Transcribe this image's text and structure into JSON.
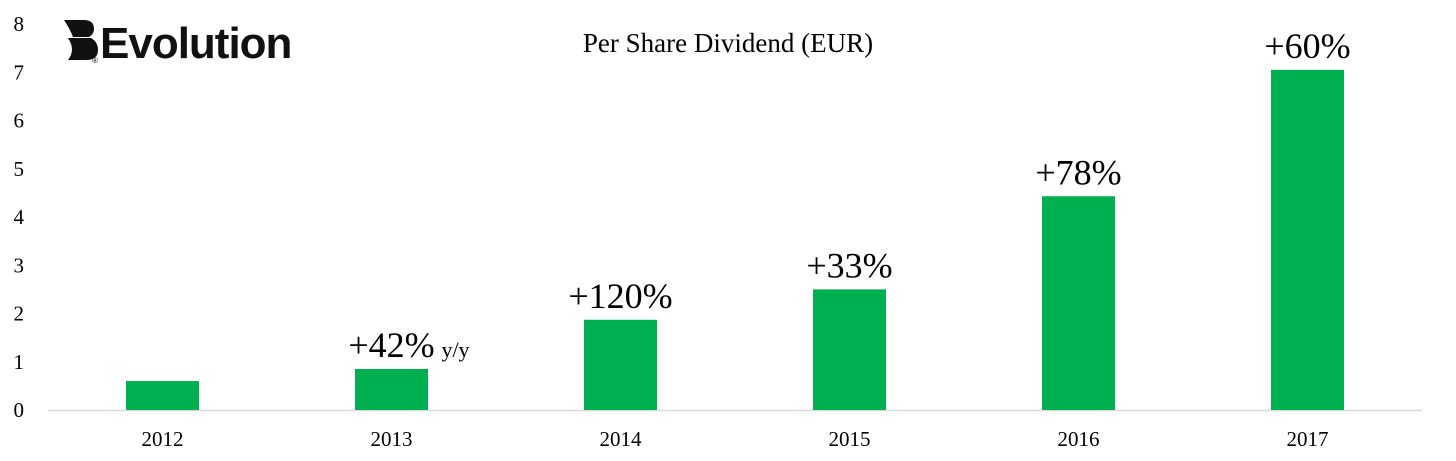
{
  "logo": {
    "text": "Evolution",
    "registered": "®"
  },
  "chart_data": {
    "type": "bar",
    "title": "Per Share Dividend (EUR)",
    "xlabel": "",
    "ylabel": "",
    "categories": [
      "2012",
      "2013",
      "2014",
      "2015",
      "2016",
      "2017"
    ],
    "values": [
      0.6,
      0.85,
      1.87,
      2.5,
      4.43,
      7.05
    ],
    "ylim": [
      0,
      8
    ],
    "yticks": [
      "0",
      "1",
      "2",
      "3",
      "4",
      "5",
      "6",
      "7",
      "8"
    ],
    "grid": false,
    "legend": "none",
    "bar_color": "#00B050",
    "annotations": [
      {
        "category": "2013",
        "text": "+42%",
        "suffix": "y/y"
      },
      {
        "category": "2014",
        "text": "+120%",
        "suffix": ""
      },
      {
        "category": "2015",
        "text": "+33%",
        "suffix": ""
      },
      {
        "category": "2016",
        "text": "+78%",
        "suffix": ""
      },
      {
        "category": "2017",
        "text": "+60%",
        "suffix": ""
      }
    ]
  }
}
